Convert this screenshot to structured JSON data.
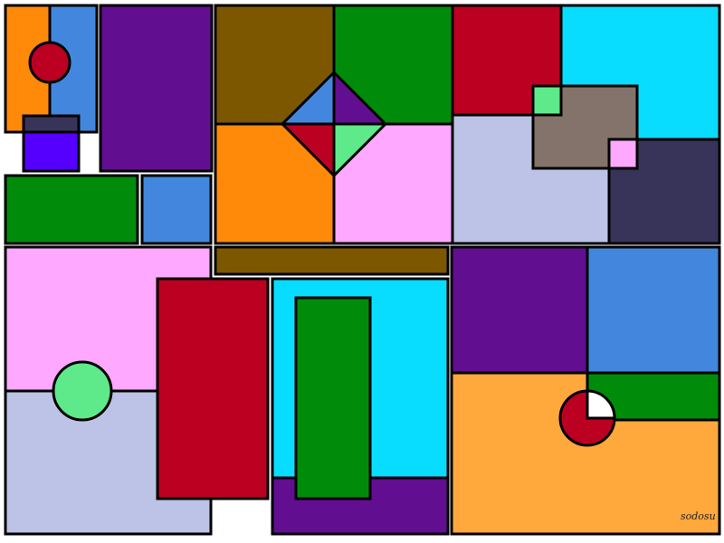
{
  "artwork": {
    "signature": "sodosu",
    "colors": {
      "orange": "#ff8a0a",
      "blue": "#4287dd",
      "red": "#bb0022",
      "navy": "#383358",
      "violet": "#5500ff",
      "purple": "#620e91",
      "green": "#008c0a",
      "brown": "#7d5700",
      "pink": "#ffa8ff",
      "lightgreen": "#5eea8a",
      "cyan": "#08dcff",
      "lavender": "#bcc3e6",
      "taupe": "#83736a",
      "lightorange": "#ffa83c",
      "white": "#ffffff",
      "stroke": "#000000"
    }
  }
}
